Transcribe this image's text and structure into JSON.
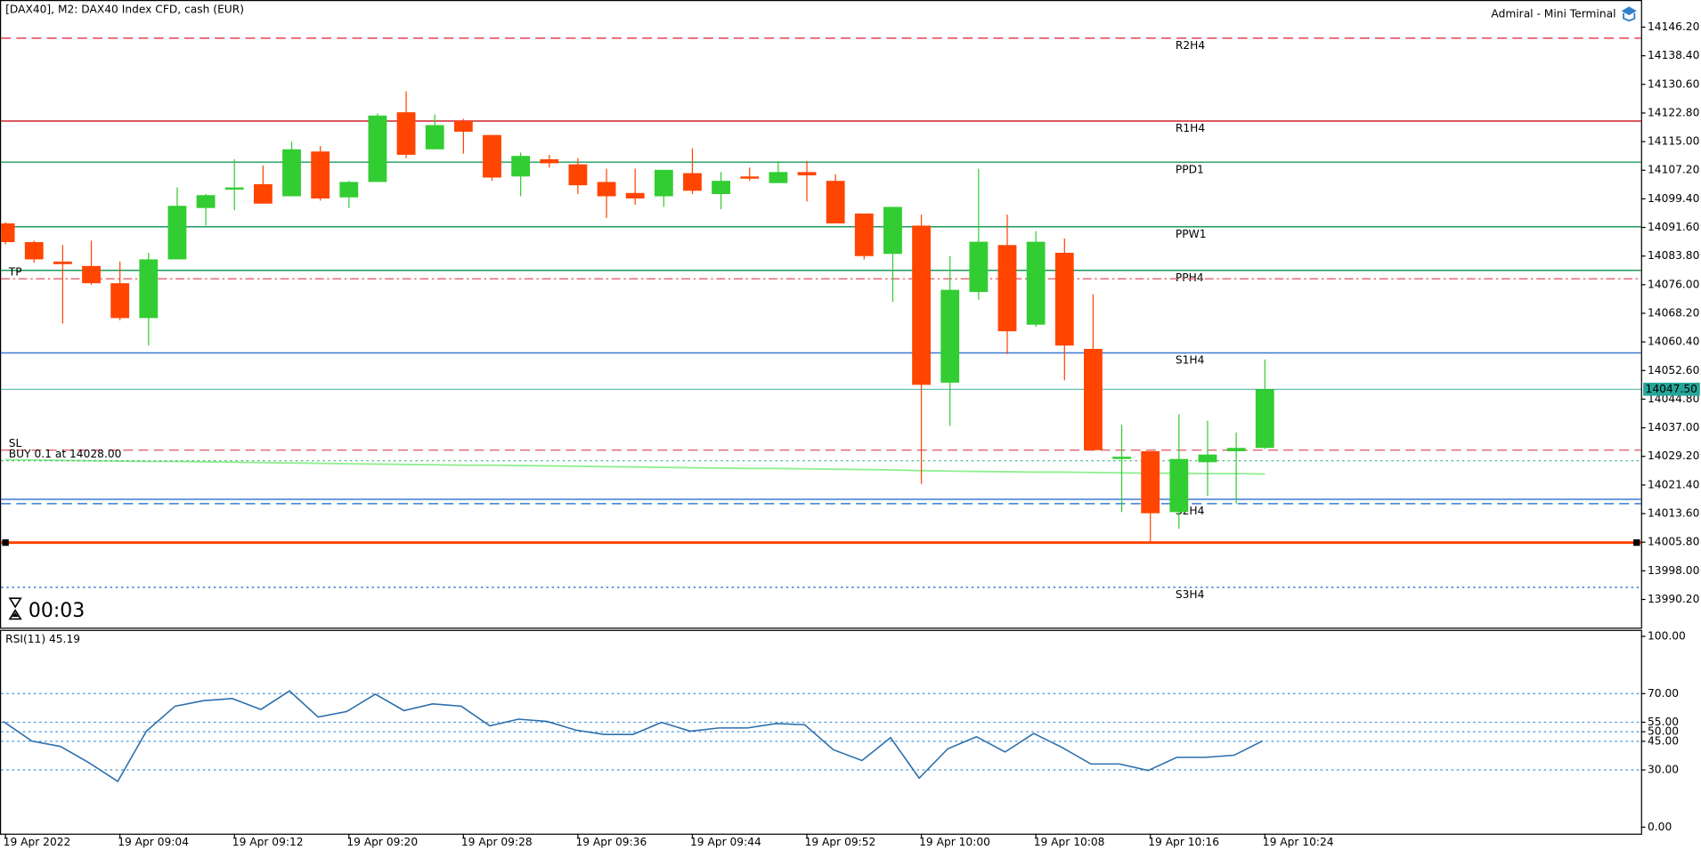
{
  "chart_data": [
    {
      "type": "candlestick",
      "title": "[DAX40], M2:  DAX40 Index CFD, cash (EUR)",
      "subtitle": "Admiral - Mini Terminal",
      "timer": "00:03",
      "categories": [
        "19 Apr 2022",
        null,
        null,
        null,
        "19 Apr 09:04",
        null,
        null,
        null,
        "19 Apr 09:12",
        null,
        null,
        null,
        "19 Apr 09:20",
        null,
        null,
        null,
        "19 Apr 09:28",
        null,
        null,
        null,
        "19 Apr 09:36",
        null,
        null,
        null,
        "19 Apr 09:44",
        null,
        null,
        null,
        "19 Apr 09:52",
        null,
        null,
        null,
        "19 Apr 10:00",
        null,
        null,
        null,
        "19 Apr 10:08",
        null,
        null,
        null,
        "19 Apr 10:16",
        null,
        null,
        null,
        "19 Apr 10:24"
      ],
      "open": [
        14092.7,
        14087.6,
        14082.3,
        14081.1,
        14076.4,
        14066.9,
        14082.9,
        14096.9,
        14101.9,
        14103.4,
        14100.1,
        14112.3,
        14099.8,
        14104.0,
        14123.0,
        14112.9,
        14120.6,
        14116.8,
        14105.5,
        14110.2,
        14108.8,
        14104.0,
        14101.0,
        14100.1,
        14106.4,
        14100.7,
        14105.5,
        14103.7,
        14106.7,
        14104.3,
        14095.4,
        14084.4,
        14092.1,
        14049.3,
        14074.0,
        14086.8,
        14065.1,
        14084.7,
        14058.5,
        14028.5,
        14030.6,
        14014.0,
        14027.6,
        14030.6,
        14031.5
      ],
      "high": [
        14093.0,
        14088.0,
        14086.8,
        14088.0,
        14082.3,
        14084.7,
        14102.5,
        14100.7,
        14110.2,
        14108.5,
        14115.0,
        14113.8,
        14104.3,
        14122.7,
        14128.7,
        14122.4,
        14121.2,
        14116.8,
        14112.0,
        14111.4,
        14110.5,
        14107.6,
        14107.6,
        14107.3,
        14113.2,
        14106.7,
        14107.9,
        14109.7,
        14109.7,
        14106.1,
        14095.4,
        14097.2,
        14095.1,
        14083.8,
        14107.6,
        14095.1,
        14090.6,
        14088.6,
        14073.4,
        14037.8,
        14030.6,
        14040.7,
        14038.9,
        14035.7,
        14055.6
      ],
      "low": [
        14087.0,
        14082.0,
        14065.4,
        14076.0,
        14066.3,
        14059.4,
        14082.9,
        14092.1,
        14096.3,
        14098.1,
        14100.1,
        14098.9,
        14096.9,
        14104.0,
        14110.5,
        14112.9,
        14111.7,
        14104.3,
        14100.1,
        14107.9,
        14100.7,
        14094.2,
        14097.8,
        14097.2,
        14100.7,
        14096.6,
        14104.3,
        14103.7,
        14098.7,
        14092.7,
        14082.9,
        14071.3,
        14021.7,
        14037.5,
        14071.9,
        14057.1,
        14064.5,
        14049.9,
        14030.9,
        14014.0,
        14005.7,
        14009.5,
        14018.4,
        14016.3,
        14031.2
      ],
      "close": [
        14087.6,
        14082.9,
        14081.6,
        14076.4,
        14066.9,
        14082.9,
        14097.5,
        14100.4,
        14102.5,
        14098.1,
        14112.9,
        14099.5,
        14104.0,
        14122.1,
        14111.4,
        14119.5,
        14117.7,
        14105.2,
        14111.1,
        14109.1,
        14103.1,
        14100.1,
        14099.5,
        14107.3,
        14101.6,
        14104.3,
        14104.9,
        14106.7,
        14105.8,
        14092.7,
        14083.8,
        14097.2,
        14048.7,
        14074.6,
        14087.7,
        14063.3,
        14087.7,
        14059.4,
        14030.9,
        14029.1,
        14013.7,
        14028.5,
        14029.7,
        14031.5,
        14047.5
      ],
      "up_color": "#32cd32",
      "down_color": "#ff4500",
      "ma": {
        "color": "#90ee90",
        "values": [
          14028.3,
          14028.2,
          14028.1,
          14028.0,
          14027.9,
          14027.8,
          14027.8,
          14027.7,
          14027.6,
          14027.5,
          14027.4,
          14027.3,
          14027.2,
          14027.1,
          14027.0,
          14026.9,
          14026.8,
          14026.8,
          14026.7,
          14026.6,
          14026.5,
          14026.4,
          14026.3,
          14026.2,
          14026.1,
          14026.0,
          14025.9,
          14025.9,
          14025.8,
          14025.7,
          14025.6,
          14025.5,
          14025.3,
          14025.2,
          14025.1,
          14025.0,
          14024.9,
          14024.9,
          14024.8,
          14024.7,
          14024.6,
          14024.6,
          14024.5,
          14024.5,
          14024.4
        ]
      },
      "ylim": [
        13982.5,
        14153.6
      ],
      "yticks": [
        {
          "value": 14146.2,
          "label": "14146.20"
        },
        {
          "value": 14138.4,
          "label": "14138.40"
        },
        {
          "value": 14130.6,
          "label": "14130.60"
        },
        {
          "value": 14122.8,
          "label": "14122.80"
        },
        {
          "value": 14115,
          "label": "14115.00"
        },
        {
          "value": 14107.2,
          "label": "14107.20"
        },
        {
          "value": 14099.4,
          "label": "14099.40"
        },
        {
          "value": 14091.6,
          "label": "14091.60"
        },
        {
          "value": 14083.8,
          "label": "14083.80"
        },
        {
          "value": 14076,
          "label": "14076.00"
        },
        {
          "value": 14068.2,
          "label": "14068.20"
        },
        {
          "value": 14060.4,
          "label": "14060.40"
        },
        {
          "value": 14052.6,
          "label": "14052.60"
        },
        {
          "value": 14044.8,
          "label": "14044.80"
        },
        {
          "value": 14037,
          "label": "14037.00"
        },
        {
          "value": 14029.2,
          "label": "14029.20"
        },
        {
          "value": 14021.4,
          "label": "14021.40"
        },
        {
          "value": 14013.6,
          "label": "14013.60"
        },
        {
          "value": 14005.8,
          "label": "14005.80"
        },
        {
          "value": 13998,
          "label": "13998.00"
        },
        {
          "value": 13990.2,
          "label": "13990.20"
        }
      ],
      "levels": [
        {
          "label": "R2H4",
          "value": 14143.2,
          "color": "#e8404f",
          "style": "dashed"
        },
        {
          "label": "R1H4",
          "value": 14120.6,
          "color": "#d0202a",
          "style": "solid"
        },
        {
          "label": "PPD1",
          "value": 14109.4,
          "color": "#1e9a5a",
          "style": "solid"
        },
        {
          "label": "PPW1",
          "value": 14091.8,
          "color": "#1e9a5a",
          "style": "solid"
        },
        {
          "label": "PPH4",
          "value": 14079.9,
          "color": "#1e9a5a",
          "style": "solid"
        },
        {
          "label": "S1H4",
          "value": 14057.4,
          "color": "#3a7bd5",
          "style": "solid"
        },
        {
          "value": 14017.5,
          "color": "#3a7bd5",
          "style": "solid"
        },
        {
          "label": "S2H4",
          "value": 14016.3,
          "color": "#3a7bd5",
          "style": "dashed"
        },
        {
          "label": "S3H4",
          "value": 13993.5,
          "color": "#3a7bd5",
          "style": "dotted"
        }
      ],
      "orders": [
        {
          "label": "TP",
          "value": 14077.6,
          "color": "#e05060",
          "style": "dashdot"
        },
        {
          "label": "SL",
          "value": 14030.9,
          "color": "#e05060",
          "style": "dashed"
        },
        {
          "label": "BUY 0.1 at 14028.00",
          "value": 14028,
          "color": "#3cb371",
          "style": "dotted"
        },
        {
          "value": 14005.7,
          "color": "#ff4500",
          "style": "thick"
        }
      ],
      "current_price": {
        "value": 14047.5,
        "label": "14047.50",
        "color": "#26a69a"
      }
    },
    {
      "type": "line",
      "title": "RSI(11) 45.19",
      "color": "#2c6fad",
      "values": [
        55.4,
        45.1,
        42.3,
        33.7,
        24.0,
        50.3,
        63.4,
        66.3,
        67.4,
        61.7,
        71.4,
        57.7,
        60.6,
        69.7,
        61.1,
        64.6,
        63.4,
        53.1,
        56.6,
        55.4,
        50.9,
        48.6,
        48.6,
        54.9,
        50.3,
        52.0,
        52.0,
        54.3,
        53.7,
        40.6,
        34.9,
        46.9,
        25.7,
        41.1,
        47.4,
        39.4,
        49.1,
        41.7,
        33.1,
        33.1,
        29.7,
        36.6,
        36.6,
        37.7,
        45.19
      ],
      "ylim": [
        -3.4,
        103.4
      ],
      "yticks": [
        {
          "value": 100,
          "label": "100.00"
        },
        {
          "value": 70,
          "label": "70.00"
        },
        {
          "value": 55,
          "label": "55.00"
        },
        {
          "value": 50,
          "label": "50.00"
        },
        {
          "value": 45,
          "label": "45.00"
        },
        {
          "value": 30,
          "label": "30.00"
        },
        {
          "value": 0,
          "label": "0.00"
        }
      ],
      "levels": [
        70,
        55,
        50,
        45,
        30
      ]
    }
  ]
}
